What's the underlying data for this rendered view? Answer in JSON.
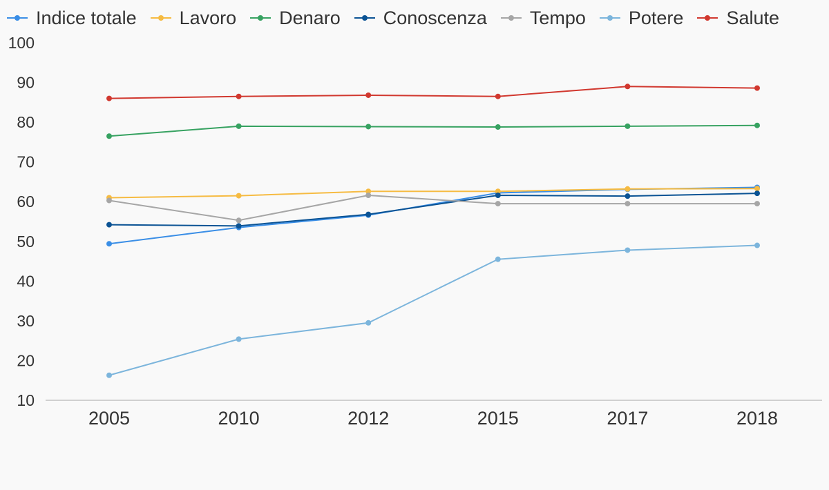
{
  "chart_data": {
    "type": "line",
    "title": "",
    "xlabel": "",
    "ylabel": "",
    "categories": [
      "2005",
      "2010",
      "2012",
      "2015",
      "2017",
      "2018"
    ],
    "ylim": [
      10,
      100
    ],
    "yticks": [
      100,
      90,
      80,
      70,
      60,
      50,
      40,
      30,
      20,
      10
    ],
    "grid": false,
    "legend_position": "top",
    "series": [
      {
        "name": "Indice totale",
        "color": "#3a8ee6",
        "values": [
          49.4,
          53.5,
          56.6,
          62.2,
          63.1,
          63.6
        ]
      },
      {
        "name": "Lavoro",
        "color": "#f6bb42",
        "values": [
          61.0,
          61.5,
          62.6,
          62.6,
          63.2,
          63.3
        ]
      },
      {
        "name": "Denaro",
        "color": "#37a261",
        "values": [
          76.5,
          79.0,
          78.9,
          78.8,
          79.0,
          79.2
        ]
      },
      {
        "name": "Conoscenza",
        "color": "#0b5394",
        "values": [
          54.2,
          53.9,
          56.8,
          61.6,
          61.4,
          62.1
        ]
      },
      {
        "name": "Tempo",
        "color": "#a6a6a6",
        "values": [
          60.3,
          55.3,
          61.6,
          59.5,
          59.5,
          59.5
        ]
      },
      {
        "name": "Potere",
        "color": "#7cb5dc",
        "values": [
          16.3,
          25.4,
          29.5,
          45.5,
          47.8,
          49.0
        ]
      },
      {
        "name": "Salute",
        "color": "#d1382f",
        "values": [
          86.0,
          86.5,
          86.8,
          86.5,
          89.0,
          88.6
        ]
      }
    ]
  }
}
